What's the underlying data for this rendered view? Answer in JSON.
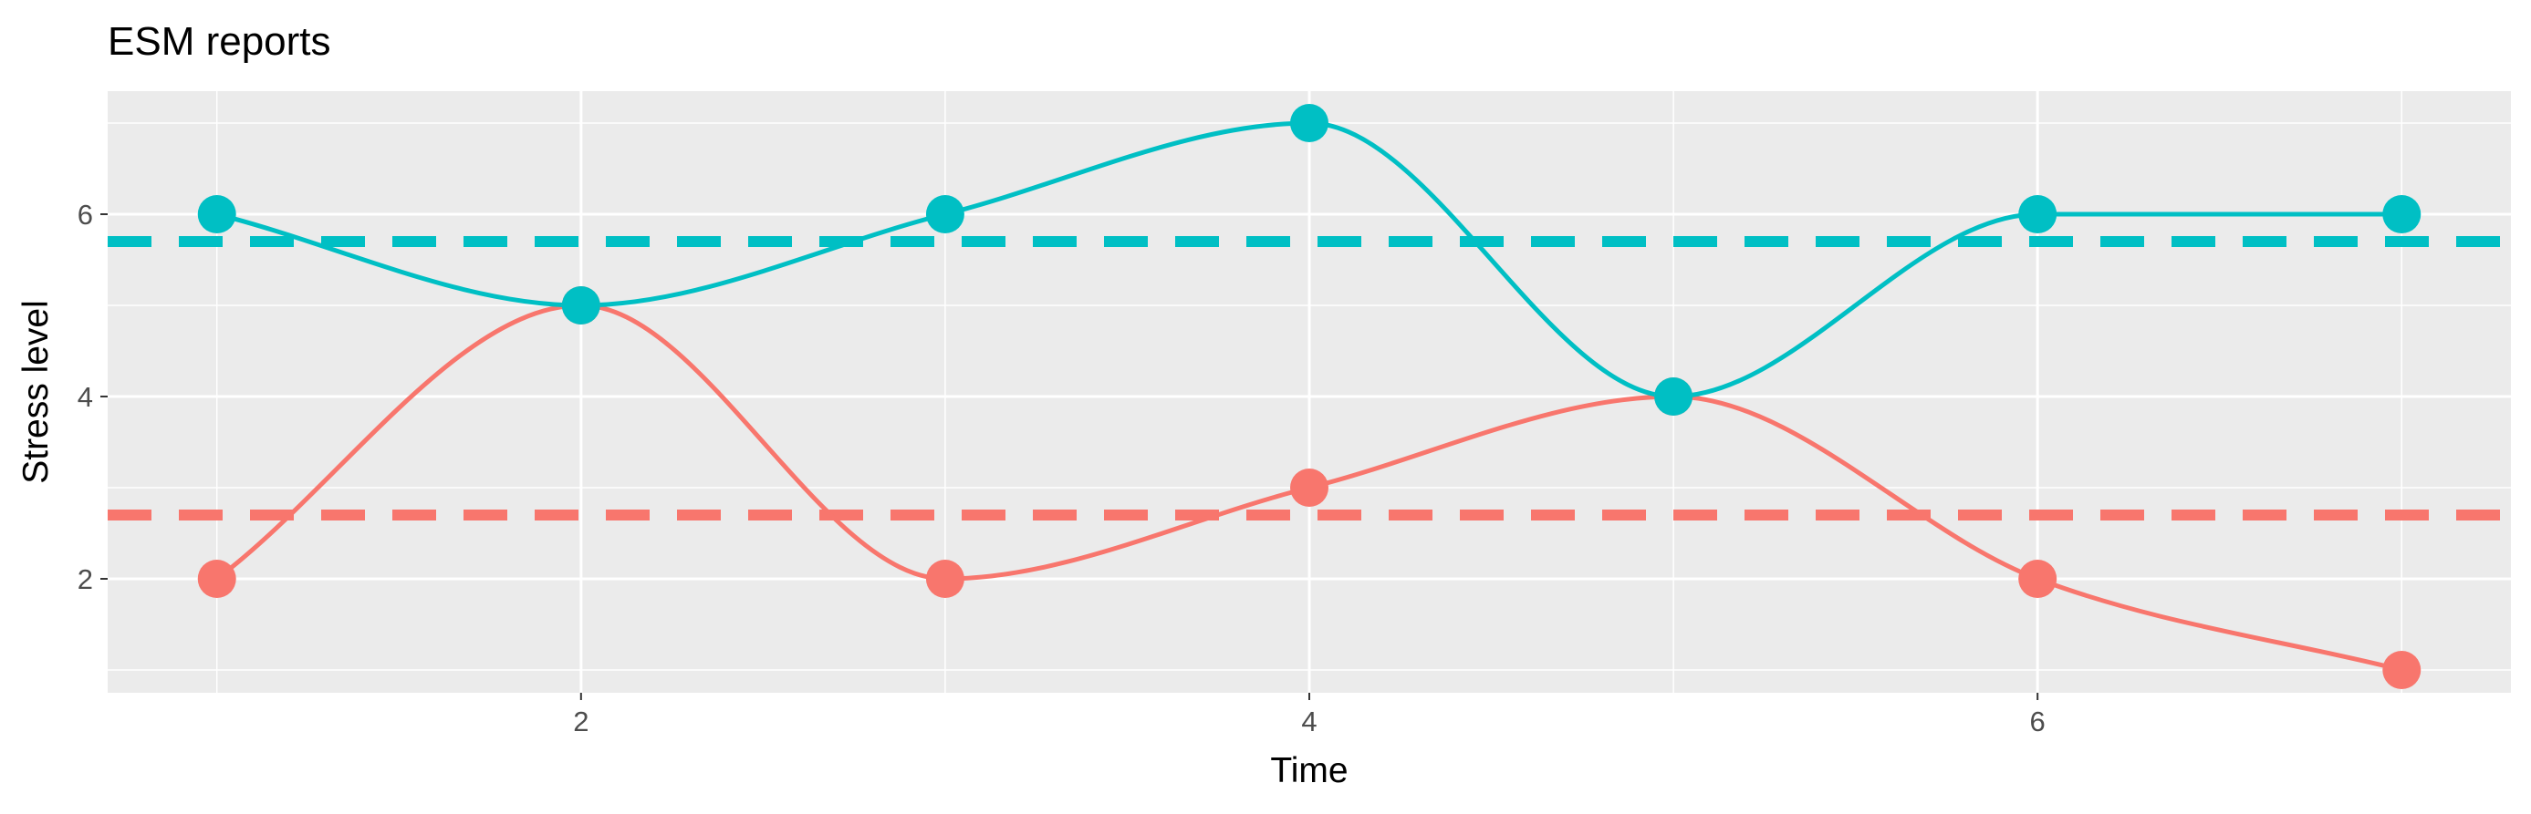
{
  "chart_data": {
    "type": "line",
    "title": "ESM reports",
    "xlabel": "Time",
    "ylabel": "Stress level",
    "x": [
      1,
      2,
      3,
      4,
      5,
      6,
      7
    ],
    "xlim": [
      0.7,
      7.3
    ],
    "ylim": [
      0.75,
      7.35
    ],
    "x_ticks": [
      2,
      4,
      6
    ],
    "x_tick_labels": [
      "2",
      "4",
      "6"
    ],
    "y_ticks": [
      2,
      4,
      6
    ],
    "y_tick_labels": [
      "2",
      "4",
      "6"
    ],
    "grid": true,
    "legend": "none",
    "series": [
      {
        "name": "red",
        "color": "#F8766D",
        "values": [
          2,
          5,
          2,
          3,
          4,
          2,
          1
        ],
        "mean": 2.7,
        "smooth": true
      },
      {
        "name": "teal",
        "color": "#00BFC4",
        "values": [
          6,
          5,
          6,
          7,
          4,
          6,
          6
        ],
        "mean": 5.7,
        "smooth": true
      }
    ],
    "panel_background": "#EBEBEB",
    "grid_color": "#FFFFFF"
  }
}
